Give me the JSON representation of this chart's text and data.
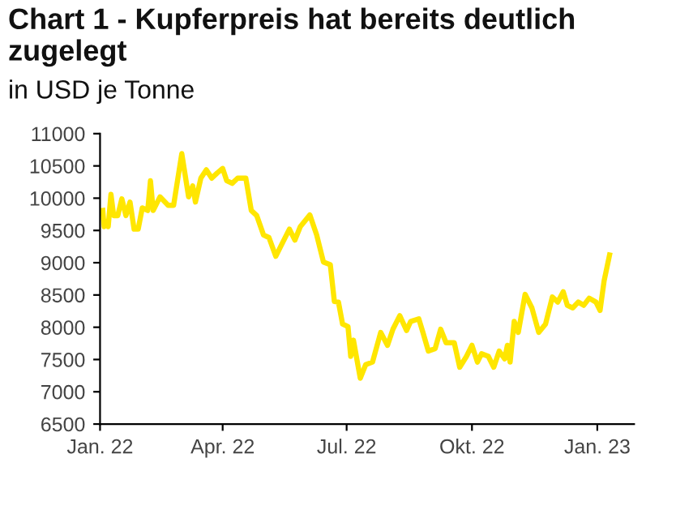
{
  "chart_data": {
    "type": "line",
    "title": "Chart 1 - Kupferpreis hat bereits deutlich zugelegt",
    "subtitle": "in USD je Tonne",
    "x": [
      "2022-01-03",
      "2022-01-04",
      "2022-01-05",
      "2022-01-07",
      "2022-01-09",
      "2022-01-11",
      "2022-01-14",
      "2022-01-17",
      "2022-01-20",
      "2022-01-23",
      "2022-01-26",
      "2022-01-29",
      "2022-02-01",
      "2022-02-05",
      "2022-02-07",
      "2022-02-09",
      "2022-02-14",
      "2022-02-20",
      "2022-02-24",
      "2022-03-02",
      "2022-03-07",
      "2022-03-10",
      "2022-03-12",
      "2022-03-16",
      "2022-03-20",
      "2022-03-24",
      "2022-03-28",
      "2022-04-01",
      "2022-04-04",
      "2022-04-08",
      "2022-04-12",
      "2022-04-18",
      "2022-04-22",
      "2022-04-26",
      "2022-05-01",
      "2022-05-05",
      "2022-05-10",
      "2022-05-14",
      "2022-05-20",
      "2022-05-24",
      "2022-05-28",
      "2022-06-04",
      "2022-06-09",
      "2022-06-14",
      "2022-06-19",
      "2022-06-22",
      "2022-06-25",
      "2022-06-28",
      "2022-07-02",
      "2022-07-04",
      "2022-07-06",
      "2022-07-11",
      "2022-07-15",
      "2022-07-20",
      "2022-07-26",
      "2022-07-31",
      "2022-08-04",
      "2022-08-09",
      "2022-08-14",
      "2022-08-17",
      "2022-08-23",
      "2022-08-26",
      "2022-08-30",
      "2022-09-04",
      "2022-09-08",
      "2022-09-12",
      "2022-09-18",
      "2022-09-22",
      "2022-09-27",
      "2022-10-01",
      "2022-10-05",
      "2022-10-08",
      "2022-10-13",
      "2022-10-17",
      "2022-10-21",
      "2022-10-25",
      "2022-10-27",
      "2022-10-29",
      "2022-11-01",
      "2022-11-04",
      "2022-11-09",
      "2022-11-14",
      "2022-11-19",
      "2022-11-24",
      "2022-11-29",
      "2022-12-03",
      "2022-12-07",
      "2022-12-10",
      "2022-12-14",
      "2022-12-18",
      "2022-12-22",
      "2022-12-26",
      "2022-12-31",
      "2023-01-03",
      "2023-01-06",
      "2023-01-10"
    ],
    "series": [
      {
        "color": "#ffe600",
        "values": [
          9810,
          9560,
          9640,
          9560,
          10060,
          9730,
          9730,
          9990,
          9730,
          9940,
          9520,
          9520,
          9850,
          9810,
          10270,
          9810,
          10020,
          9890,
          9890,
          10690,
          10020,
          10190,
          9940,
          10310,
          10440,
          10310,
          10390,
          10460,
          10270,
          10230,
          10310,
          10310,
          9810,
          9730,
          9430,
          9390,
          9100,
          9270,
          9520,
          9350,
          9560,
          9740,
          9430,
          9010,
          8970,
          8400,
          8390,
          8050,
          8010,
          7550,
          7800,
          7210,
          7420,
          7460,
          7920,
          7720,
          7970,
          8180,
          7950,
          8090,
          8130,
          7920,
          7630,
          7670,
          7970,
          7760,
          7760,
          7380,
          7550,
          7720,
          7460,
          7590,
          7550,
          7380,
          7630,
          7510,
          7720,
          7460,
          8090,
          7920,
          8510,
          8300,
          7920,
          8050,
          8470,
          8390,
          8550,
          8340,
          8300,
          8390,
          8340,
          8450,
          8390,
          8260,
          8720,
          9120
        ]
      }
    ],
    "xlim": [
      "2022-01-01",
      "2023-01-28"
    ],
    "xticks": [
      {
        "value": "2022-01-01",
        "label": "Jan. 22"
      },
      {
        "value": "2022-04-01",
        "label": "Apr. 22"
      },
      {
        "value": "2022-07-01",
        "label": "Jul. 22"
      },
      {
        "value": "2022-10-01",
        "label": "Okt. 22"
      },
      {
        "value": "2023-01-01",
        "label": "Jan. 23"
      }
    ],
    "ylim": [
      6500,
      11000
    ],
    "yticks": [
      6500,
      7000,
      7500,
      8000,
      8500,
      9000,
      9500,
      10000,
      10500,
      11000
    ],
    "grid": false,
    "marker": "none",
    "line_style": "solid"
  }
}
